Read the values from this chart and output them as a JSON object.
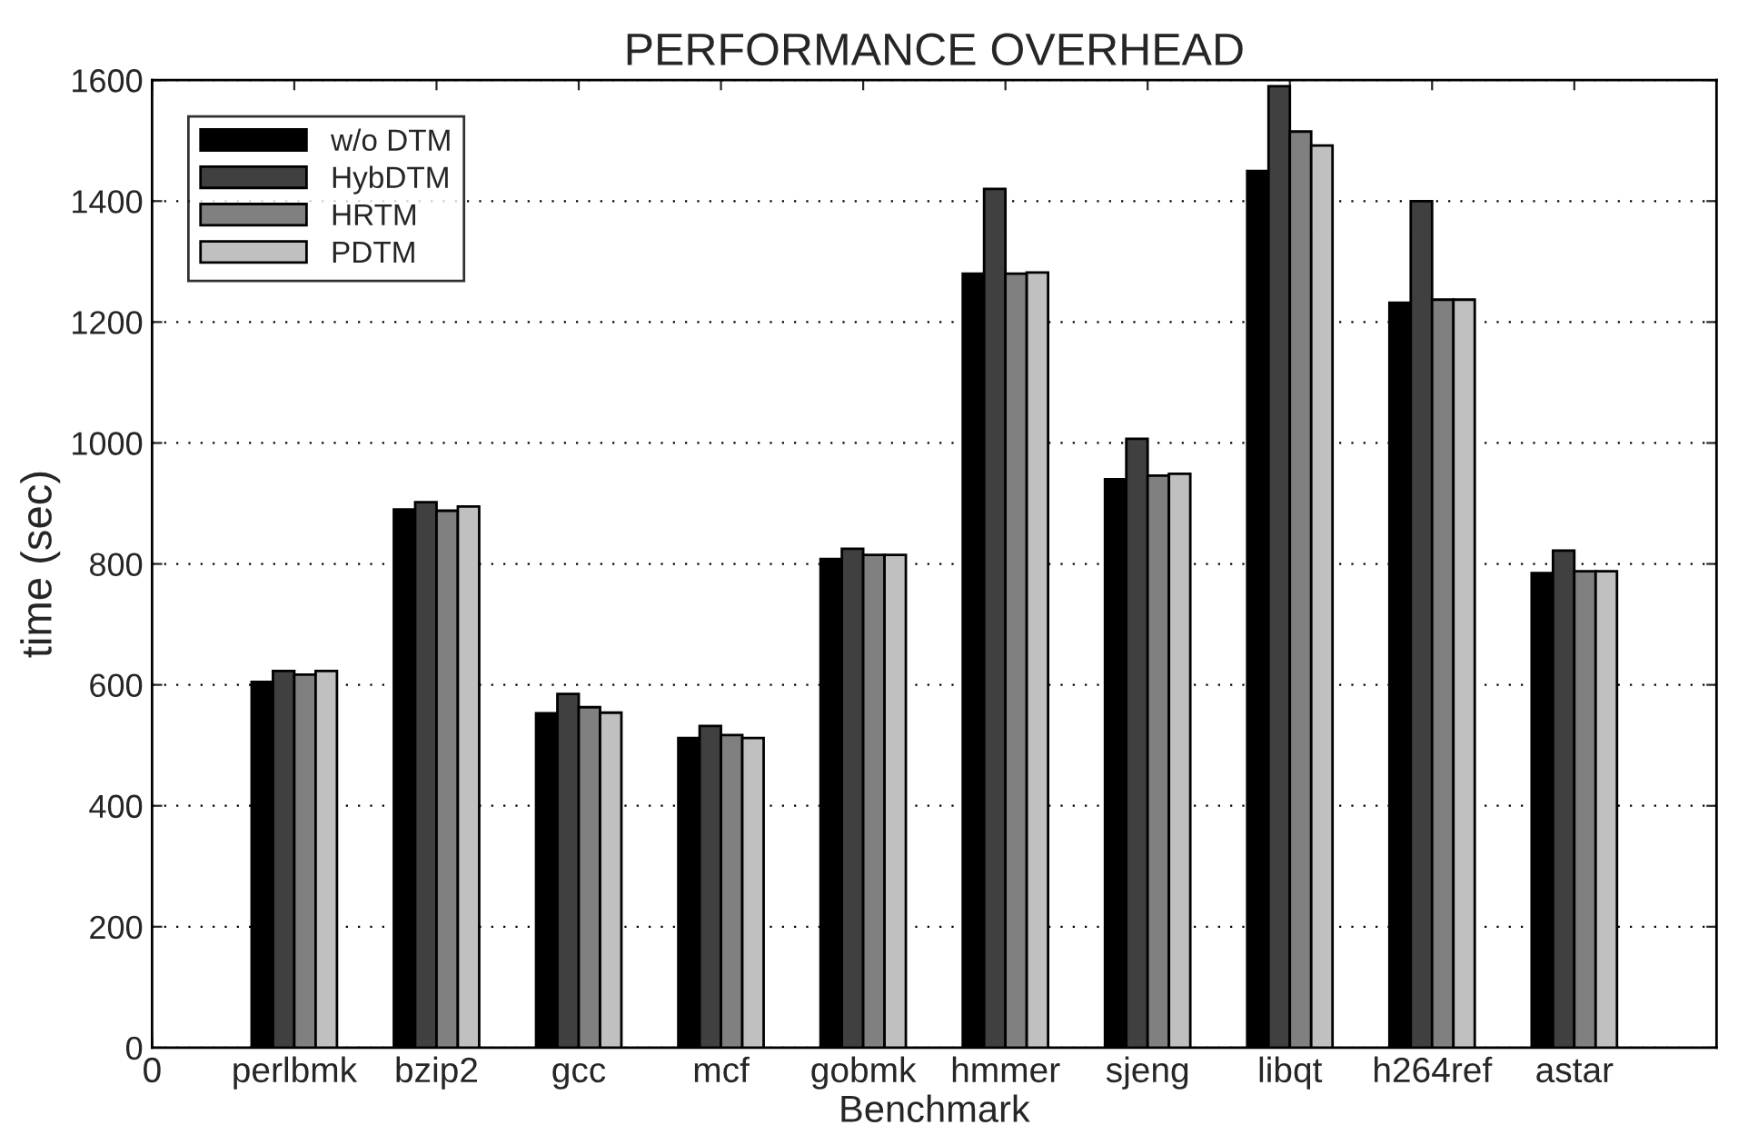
{
  "chart_data": {
    "type": "bar",
    "title": "PERFORMANCE OVERHEAD",
    "xlabel": "Benchmark",
    "ylabel": "time (sec)",
    "categories": [
      "0",
      "perlbmk",
      "bzip2",
      "gcc",
      "mcf",
      "gobmk",
      "hmmer",
      "sjeng",
      "libqt",
      "h264ref",
      "astar"
    ],
    "ylim": [
      0,
      1600
    ],
    "yticks": [
      0,
      200,
      400,
      600,
      800,
      1000,
      1200,
      1400,
      1600
    ],
    "series": [
      {
        "name": "w/o DTM",
        "color": "#000000",
        "values": [
          null,
          605,
          890,
          553,
          512,
          808,
          1280,
          940,
          1450,
          1232,
          785
        ]
      },
      {
        "name": "HybDTM",
        "color": "#404040",
        "values": [
          null,
          623,
          902,
          585,
          532,
          825,
          1420,
          1007,
          1590,
          1400,
          822
        ]
      },
      {
        "name": "HRTM",
        "color": "#808080",
        "values": [
          null,
          617,
          888,
          563,
          517,
          815,
          1280,
          946,
          1515,
          1237,
          788
        ]
      },
      {
        "name": "PDTM",
        "color": "#c0c0c0",
        "values": [
          null,
          623,
          895,
          554,
          512,
          815,
          1282,
          949,
          1492,
          1237,
          788
        ]
      }
    ],
    "grid": "y",
    "legend": "top left"
  }
}
